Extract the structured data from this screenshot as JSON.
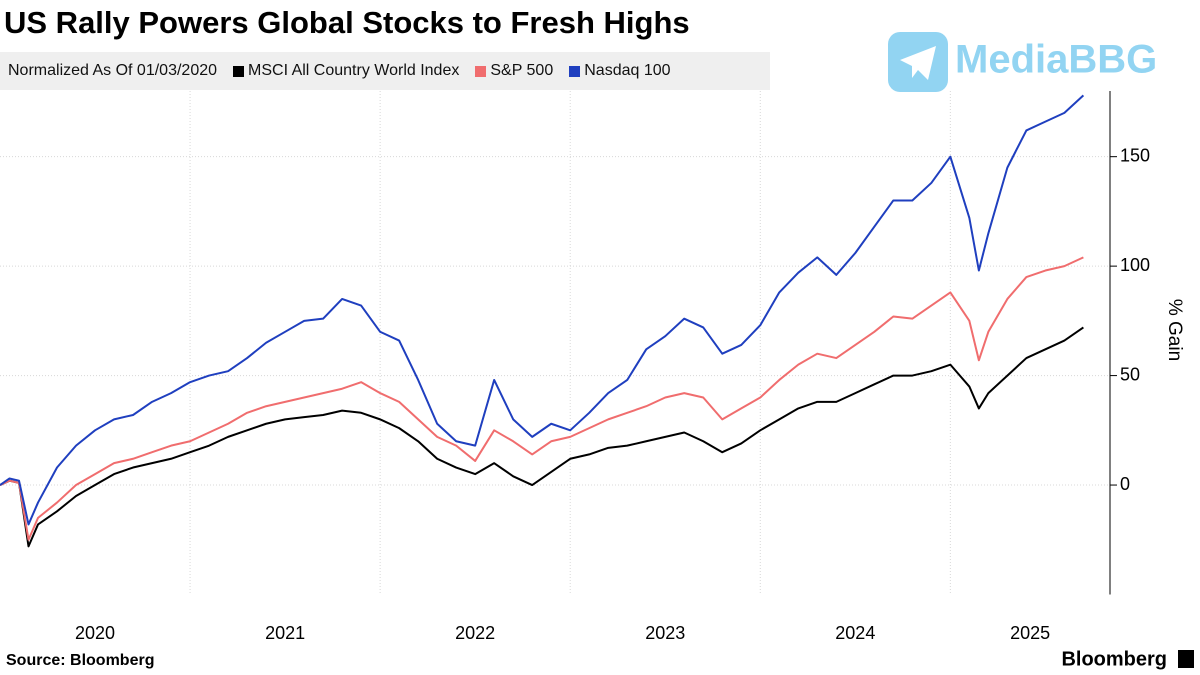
{
  "chart_data": {
    "type": "line",
    "title": "US Rally Powers Global Stocks to Fresh Highs",
    "subtitle": "Normalized As Of 01/03/2020",
    "y_label": "% Gain",
    "source": "Source: Bloomberg",
    "brand": "Bloomberg",
    "watermark": "MediaBBG",
    "x": [
      2020.0,
      2020.05,
      2020.1,
      2020.15,
      2020.2,
      2020.3,
      2020.4,
      2020.5,
      2020.6,
      2020.7,
      2020.8,
      2020.9,
      2021.0,
      2021.1,
      2021.2,
      2021.3,
      2021.4,
      2021.5,
      2021.6,
      2021.7,
      2021.8,
      2021.9,
      2022.0,
      2022.1,
      2022.2,
      2022.3,
      2022.4,
      2022.5,
      2022.6,
      2022.7,
      2022.8,
      2022.9,
      2023.0,
      2023.1,
      2023.2,
      2023.3,
      2023.4,
      2023.5,
      2023.6,
      2023.7,
      2023.8,
      2023.9,
      2024.0,
      2024.1,
      2024.2,
      2024.3,
      2024.4,
      2024.5,
      2024.6,
      2024.7,
      2024.8,
      2024.9,
      2025.0,
      2025.1,
      2025.15,
      2025.2,
      2025.3,
      2025.4,
      2025.5,
      2025.6,
      2025.7
    ],
    "series": [
      {
        "name": "MSCI All Country World Index",
        "color": "#000000",
        "values": [
          0,
          2,
          1,
          -28,
          -18,
          -12,
          -5,
          0,
          5,
          8,
          10,
          12,
          15,
          18,
          22,
          25,
          28,
          30,
          31,
          32,
          34,
          33,
          30,
          26,
          20,
          12,
          8,
          5,
          10,
          4,
          0,
          6,
          12,
          14,
          17,
          18,
          20,
          22,
          24,
          20,
          15,
          19,
          25,
          30,
          35,
          38,
          38,
          42,
          46,
          50,
          50,
          52,
          55,
          45,
          35,
          42,
          50,
          58,
          62,
          66,
          72
        ]
      },
      {
        "name": "S&P 500",
        "color": "#f06d6e",
        "values": [
          0,
          2,
          1,
          -25,
          -15,
          -8,
          0,
          5,
          10,
          12,
          15,
          18,
          20,
          24,
          28,
          33,
          36,
          38,
          40,
          42,
          44,
          47,
          42,
          38,
          30,
          22,
          18,
          11,
          25,
          20,
          14,
          20,
          22,
          26,
          30,
          33,
          36,
          40,
          42,
          40,
          30,
          35,
          40,
          48,
          55,
          60,
          58,
          64,
          70,
          77,
          76,
          82,
          88,
          75,
          57,
          70,
          85,
          95,
          98,
          100,
          104
        ]
      },
      {
        "name": "Nasdaq 100",
        "color": "#1f3fbf",
        "values": [
          0,
          3,
          2,
          -18,
          -8,
          8,
          18,
          25,
          30,
          32,
          38,
          42,
          47,
          50,
          52,
          58,
          65,
          70,
          75,
          76,
          85,
          82,
          70,
          66,
          48,
          28,
          20,
          18,
          48,
          30,
          22,
          28,
          25,
          33,
          42,
          48,
          62,
          68,
          76,
          72,
          60,
          64,
          73,
          88,
          97,
          104,
          96,
          106,
          118,
          130,
          130,
          138,
          150,
          122,
          98,
          115,
          145,
          162,
          166,
          170,
          178
        ]
      }
    ],
    "xlim": [
      2020,
      2025.84
    ],
    "xticks": [
      2020,
      2021,
      2022,
      2023,
      2024,
      2025
    ],
    "ylim": [
      -50,
      180
    ],
    "yticks": [
      0,
      50,
      100,
      150
    ],
    "grid": true
  }
}
